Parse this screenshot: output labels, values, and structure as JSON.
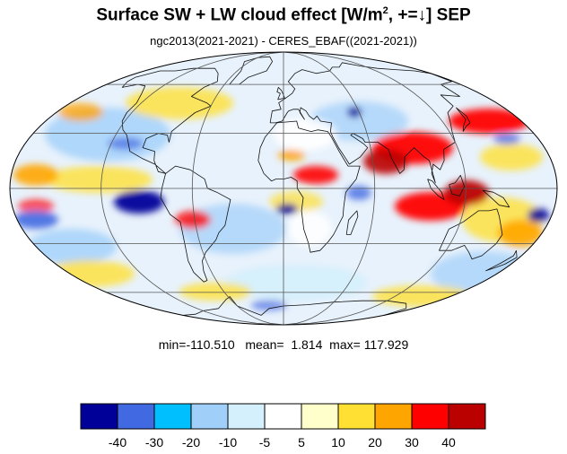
{
  "title": {
    "main": "Surface SW + LW cloud effect [W/m",
    "superscript": "2",
    "suffix": ", +=↓]  SEP"
  },
  "subtitle": "ngc2013(2021-2021) - CERES_EBAF((2021-2021))",
  "stats": {
    "min_label": "min=",
    "min": "-110.510",
    "mean_label": "mean=",
    "mean": "1.814",
    "max_label": "max=",
    "max": "117.929"
  },
  "colorbar": {
    "colors": [
      "#000099",
      "#4169e1",
      "#00bfff",
      "#a0cffa",
      "#d4f0fc",
      "#ffffff",
      "#ffffcc",
      "#ffe033",
      "#ffa500",
      "#ff0000",
      "#bb0000"
    ],
    "tick_labels": [
      "-40",
      "-30",
      "-20",
      "-10",
      "-5",
      "5",
      "10",
      "20",
      "30",
      "40"
    ]
  },
  "map": {
    "projection": "mollweide",
    "central_longitude": 0,
    "grid_spacing_deg": 30,
    "ocean_field_color": "#e8f2fc"
  }
}
